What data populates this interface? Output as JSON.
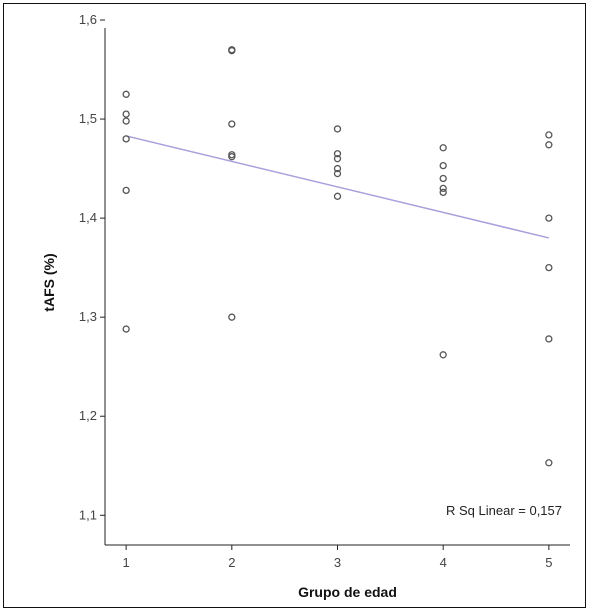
{
  "chart_data": {
    "type": "scatter",
    "xlabel": "Grupo de edad",
    "ylabel": "tAFS (%)",
    "xlim": [
      0.8,
      5.2
    ],
    "ylim": [
      1.07,
      1.6
    ],
    "xticks": [
      1,
      2,
      3,
      4,
      5
    ],
    "yticks": [
      1.1,
      1.2,
      1.3,
      1.4,
      1.5,
      1.6
    ],
    "xtick_labels": [
      "1",
      "2",
      "3",
      "4",
      "5"
    ],
    "ytick_labels": [
      "1,1",
      "1,2",
      "1,3",
      "1,4",
      "1,5",
      "1,6"
    ],
    "points": [
      {
        "x": 1,
        "y": 1.525
      },
      {
        "x": 1,
        "y": 1.505
      },
      {
        "x": 1,
        "y": 1.498
      },
      {
        "x": 1,
        "y": 1.48
      },
      {
        "x": 1,
        "y": 1.428
      },
      {
        "x": 1,
        "y": 1.288
      },
      {
        "x": 2,
        "y": 1.57
      },
      {
        "x": 2,
        "y": 1.569
      },
      {
        "x": 2,
        "y": 1.495
      },
      {
        "x": 2,
        "y": 1.464
      },
      {
        "x": 2,
        "y": 1.462
      },
      {
        "x": 2,
        "y": 1.3
      },
      {
        "x": 3,
        "y": 1.49
      },
      {
        "x": 3,
        "y": 1.465
      },
      {
        "x": 3,
        "y": 1.46
      },
      {
        "x": 3,
        "y": 1.45
      },
      {
        "x": 3,
        "y": 1.445
      },
      {
        "x": 3,
        "y": 1.422
      },
      {
        "x": 4,
        "y": 1.471
      },
      {
        "x": 4,
        "y": 1.453
      },
      {
        "x": 4,
        "y": 1.44
      },
      {
        "x": 4,
        "y": 1.43
      },
      {
        "x": 4,
        "y": 1.426
      },
      {
        "x": 4,
        "y": 1.262
      },
      {
        "x": 5,
        "y": 1.484
      },
      {
        "x": 5,
        "y": 1.474
      },
      {
        "x": 5,
        "y": 1.4
      },
      {
        "x": 5,
        "y": 1.35
      },
      {
        "x": 5,
        "y": 1.278
      },
      {
        "x": 5,
        "y": 1.153
      }
    ],
    "fit_line": {
      "x": [
        1,
        5
      ],
      "y": [
        1.483,
        1.38
      ]
    },
    "annotation": "R Sq Linear = 0,157",
    "grid": false,
    "colors": {
      "line": "#a8a0dc",
      "marker": "#555555",
      "axis": "#222222"
    }
  }
}
